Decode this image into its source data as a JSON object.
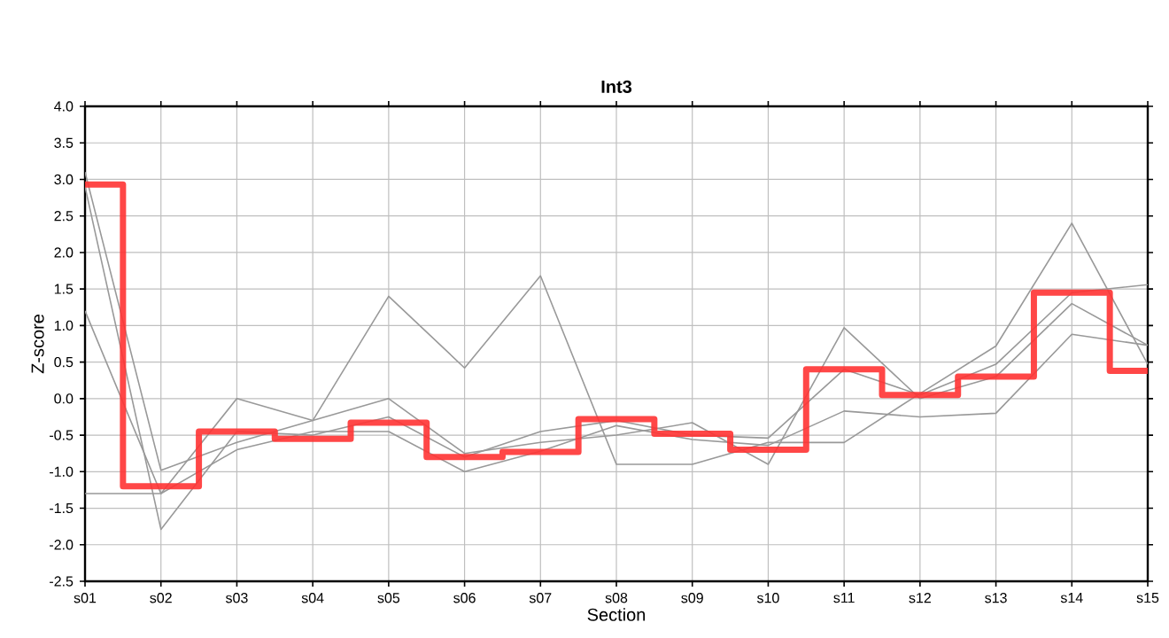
{
  "chart_data": {
    "type": "line",
    "title": "Int3",
    "xlabel": "Section",
    "ylabel": "Z-score",
    "categories": [
      "s01",
      "s02",
      "s03",
      "s04",
      "s05",
      "s06",
      "s07",
      "s08",
      "s09",
      "s10",
      "s11",
      "s12",
      "s13",
      "s14",
      "s15"
    ],
    "series": [
      {
        "color": "#999999",
        "values": [
          1.2,
          -1.3,
          0.0,
          -0.3,
          1.4,
          0.42,
          1.68,
          -0.9,
          -0.9,
          -0.6,
          -0.6,
          0.07,
          0.72,
          2.4,
          0.47
        ]
      },
      {
        "color": "#999999",
        "values": [
          3.1,
          -0.98,
          -0.6,
          -0.3,
          0.0,
          -0.75,
          -0.6,
          -0.5,
          -0.33,
          -0.9,
          0.97,
          0.0,
          0.3,
          1.3,
          0.73
        ]
      },
      {
        "color": "#999999",
        "values": [
          2.9,
          -1.79,
          -0.45,
          -0.5,
          -0.25,
          -0.8,
          -0.45,
          -0.3,
          -0.5,
          -0.54,
          0.4,
          0.05,
          0.47,
          1.45,
          1.56
        ]
      },
      {
        "color": "#999999",
        "values": [
          -1.3,
          -1.3,
          -0.7,
          -0.45,
          -0.45,
          -1.0,
          -0.72,
          -0.37,
          -0.56,
          -0.64,
          -0.17,
          -0.25,
          -0.2,
          0.88,
          0.73
        ]
      },
      {
        "type": "step",
        "color": "#ff3333",
        "values": [
          2.93,
          -1.2,
          -0.45,
          -0.55,
          -0.33,
          -0.8,
          -0.73,
          -0.28,
          -0.48,
          -0.7,
          0.4,
          0.05,
          0.3,
          1.45,
          0.38
        ]
      }
    ],
    "ylim": [
      -2.5,
      4.0
    ],
    "yticks": [
      {
        "value": -2.5,
        "label": "-2.5"
      },
      {
        "value": -2,
        "label": "-2.0"
      },
      {
        "value": -1.5,
        "label": "-1.5"
      },
      {
        "value": -1,
        "label": "-1.0"
      },
      {
        "value": -0.5,
        "label": "-0.5"
      },
      {
        "value": 0,
        "label": "0.0"
      },
      {
        "value": 0.5,
        "label": "0.5"
      },
      {
        "value": 1,
        "label": "1.0"
      },
      {
        "value": 1.5,
        "label": "1.5"
      },
      {
        "value": 2,
        "label": "2.0"
      },
      {
        "value": 2.5,
        "label": "2.5"
      },
      {
        "value": 3,
        "label": "3.0"
      },
      {
        "value": 3.5,
        "label": "3.5"
      },
      {
        "value": 4,
        "label": "4.0"
      }
    ],
    "grid": true
  }
}
